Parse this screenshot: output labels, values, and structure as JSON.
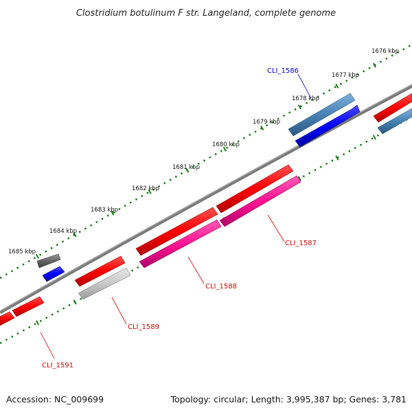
{
  "title": "Clostridium botulinum F str. Langeland, complete genome",
  "footer": {
    "accession": "Accession: NC_009699",
    "summary": "Topology: circular; Length: 3,995,387 bp; Genes: 3,781"
  },
  "ruler": {
    "tick_labels": [
      "1676 kbp",
      "1677 kbp",
      "1678 kbp",
      "1679 kbp",
      "1680 kbp",
      "1681 kbp",
      "1682 kbp",
      "1683 kbp",
      "1684 kbp",
      "1685 kbp"
    ]
  },
  "genes": [
    {
      "label": "CLI_1586",
      "color": "#0000cc"
    },
    {
      "label": "CLI_1587",
      "color": "#cc0000"
    },
    {
      "label": "CLI_1588",
      "color": "#cc0000"
    },
    {
      "label": "CLI_1589",
      "color": "#cc0000"
    },
    {
      "label": "CLI_1591",
      "color": "#cc0000"
    }
  ],
  "colors": {
    "backbone": "#7a7a7a",
    "tick_ring": "#1a7a1a",
    "cds_forward": "#ff0000",
    "cds_reverse": "#0000ff",
    "rna": "#ff1493",
    "steelblue": "#4682b4",
    "gray": "#bdbdbd",
    "darkgray": "#666666"
  }
}
